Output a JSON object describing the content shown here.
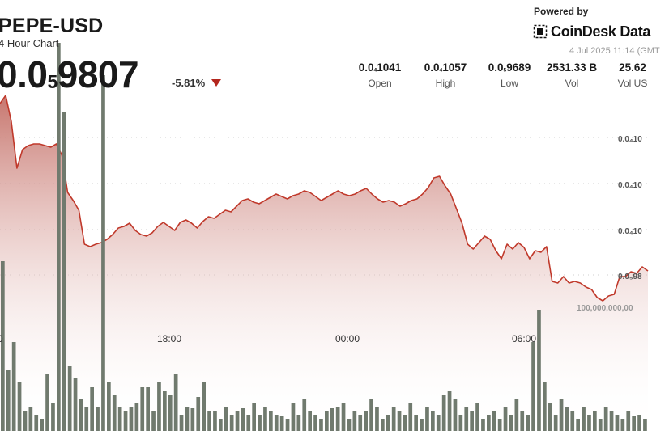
{
  "header": {
    "title": "PEPE-USD",
    "subtitle": "4 Hour Chart",
    "price_main": "0.0",
    "price_zeros": "5",
    "price_tail": "9807",
    "change": "-5.81%"
  },
  "branding": {
    "powered_by": "Powered by",
    "brand_name": "CoinDesk Data",
    "brand_icon": "coindesk-square-icon"
  },
  "timestamp": "4 Jul 2025 11:14 (GMT",
  "stats": [
    {
      "label": "Open",
      "prefix": "0.0",
      "sub": "4",
      "suffix": "1041"
    },
    {
      "label": "High",
      "prefix": "0.0",
      "sub": "4",
      "suffix": "1057"
    },
    {
      "label": "Low",
      "prefix": "0.0",
      "sub": "5",
      "suffix": "9689"
    },
    {
      "label": "Vol",
      "prefix": "2531.33 B",
      "sub": "",
      "suffix": ""
    },
    {
      "label": "Vol US",
      "prefix": "25.62",
      "sub": "",
      "suffix": ""
    }
  ],
  "colors": {
    "line": "#c0392b",
    "fill_top": "#c7766e",
    "fill_bottom": "#ffffff",
    "volume_bar": "#707a6e",
    "down": "#b3261e"
  },
  "chart_data": {
    "type": "area",
    "x_ticks": [
      "18:00",
      "00:00",
      "06:00"
    ],
    "y_ticks": [
      "0.0₄10",
      "0.0₄10",
      "0.0₄10",
      "0.0₅98"
    ],
    "volume_label": "100,000,000,00",
    "grid": true,
    "price_series": [
      128,
      118,
      150,
      208,
      185,
      180,
      178,
      178,
      180,
      182,
      178,
      192,
      238,
      248,
      260,
      302,
      305,
      302,
      300,
      296,
      290,
      282,
      280,
      276,
      285,
      290,
      292,
      288,
      280,
      275,
      280,
      285,
      275,
      272,
      276,
      282,
      274,
      268,
      270,
      265,
      260,
      262,
      255,
      248,
      246,
      250,
      252,
      248,
      244,
      240,
      243,
      246,
      242,
      240,
      236,
      238,
      243,
      248,
      244,
      240,
      236,
      240,
      242,
      240,
      236,
      233,
      240,
      246,
      250,
      248,
      250,
      255,
      252,
      248,
      246,
      240,
      232,
      220,
      218,
      230,
      240,
      258,
      276,
      302,
      308,
      300,
      292,
      296,
      310,
      320,
      302,
      308,
      300,
      306,
      320,
      310,
      312,
      305,
      348,
      350,
      342,
      350,
      348,
      350,
      355,
      358,
      368,
      372,
      366,
      364,
      342,
      342,
      336,
      338,
      330,
      335
    ],
    "volume_series": [
      210,
      75,
      110,
      60,
      25,
      30,
      20,
      15,
      70,
      35,
      480,
      395,
      80,
      65,
      40,
      30,
      55,
      30,
      440,
      60,
      45,
      30,
      25,
      30,
      35,
      55,
      55,
      25,
      60,
      50,
      45,
      70,
      20,
      30,
      28,
      42,
      60,
      25,
      25,
      15,
      30,
      20,
      25,
      28,
      20,
      35,
      20,
      30,
      25,
      20,
      18,
      15,
      35,
      20,
      40,
      25,
      20,
      15,
      25,
      28,
      30,
      35,
      15,
      25,
      20,
      25,
      40,
      30,
      15,
      20,
      30,
      25,
      20,
      35,
      20,
      15,
      30,
      25,
      20,
      45,
      50,
      40,
      20,
      30,
      25,
      35,
      15,
      20,
      25,
      15,
      30,
      20,
      40,
      25,
      20,
      110,
      150,
      60,
      35,
      20,
      40,
      30,
      25,
      15,
      30,
      20,
      25,
      15,
      30,
      25,
      20,
      15,
      25,
      18,
      20,
      15
    ]
  }
}
